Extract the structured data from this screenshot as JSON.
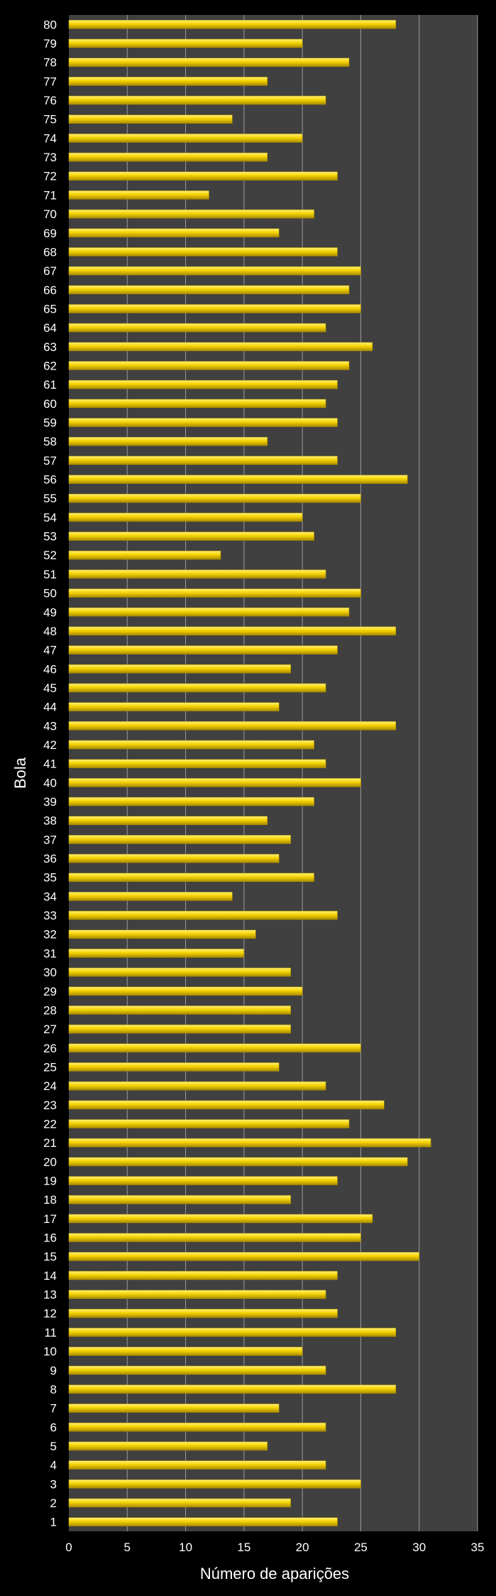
{
  "chart_data": {
    "type": "bar",
    "orientation": "horizontal",
    "xlabel": "Número de aparições",
    "ylabel": "Bola",
    "xlim": [
      0,
      35
    ],
    "xticks": [
      0,
      5,
      10,
      15,
      20,
      25,
      30,
      35
    ],
    "grid": true,
    "legend": "none",
    "categories": [
      "1",
      "2",
      "3",
      "4",
      "5",
      "6",
      "7",
      "8",
      "9",
      "10",
      "11",
      "12",
      "13",
      "14",
      "15",
      "16",
      "17",
      "18",
      "19",
      "20",
      "21",
      "22",
      "23",
      "24",
      "25",
      "26",
      "27",
      "28",
      "29",
      "30",
      "31",
      "32",
      "33",
      "34",
      "35",
      "36",
      "37",
      "38",
      "39",
      "40",
      "41",
      "42",
      "43",
      "44",
      "45",
      "46",
      "47",
      "48",
      "49",
      "50",
      "51",
      "52",
      "53",
      "54",
      "55",
      "56",
      "57",
      "58",
      "59",
      "60",
      "61",
      "62",
      "63",
      "64",
      "65",
      "66",
      "67",
      "68",
      "69",
      "70",
      "71",
      "72",
      "73",
      "74",
      "75",
      "76",
      "77",
      "78",
      "79",
      "80"
    ],
    "values": [
      23,
      19,
      25,
      22,
      17,
      22,
      18,
      28,
      22,
      20,
      28,
      23,
      22,
      23,
      30,
      25,
      26,
      19,
      23,
      29,
      31,
      24,
      27,
      22,
      18,
      25,
      19,
      19,
      20,
      19,
      15,
      16,
      23,
      14,
      21,
      18,
      19,
      17,
      21,
      25,
      22,
      21,
      28,
      18,
      22,
      19,
      23,
      28,
      24,
      25,
      22,
      13,
      21,
      20,
      25,
      29,
      23,
      17,
      23,
      22,
      23,
      24,
      26,
      22,
      25,
      24,
      25,
      23,
      18,
      21,
      12,
      23,
      17,
      20,
      14,
      22,
      17,
      24,
      20,
      28
    ],
    "colors": {
      "background": "#000000",
      "plot_area": "#404040",
      "gridline": "#9a9a9a",
      "bar_light": "#fff27a",
      "bar_main": "#f5d300",
      "bar_dark": "#a88a00",
      "text": "#ffffff"
    }
  }
}
